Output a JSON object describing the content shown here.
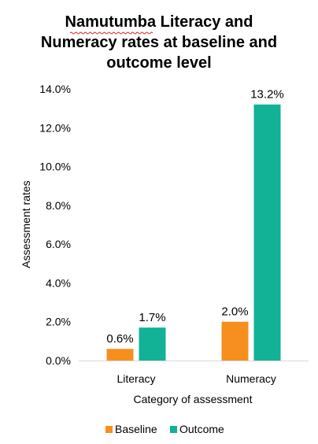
{
  "chart_data": {
    "type": "bar",
    "title_lines": [
      "Namutumba Literacy and",
      "Numeracy rates at baseline and",
      "outcome level"
    ],
    "xlabel": "Category of assessment",
    "ylabel": "Assessment rates",
    "categories": [
      "Literacy",
      "Numeracy"
    ],
    "series": [
      {
        "name": "Baseline",
        "color": "#F78F1E",
        "values": [
          0.6,
          2.0
        ],
        "labels": [
          "0.6%",
          "2.0%"
        ]
      },
      {
        "name": "Outcome",
        "color": "#12B297",
        "values": [
          1.7,
          13.2
        ],
        "labels": [
          "1.7%",
          "13.2%"
        ]
      }
    ],
    "ylim": [
      0,
      14
    ],
    "yticks": [
      0,
      2,
      4,
      6,
      8,
      10,
      12,
      14
    ],
    "ytick_labels": [
      "0.0%",
      "2.0%",
      "4.0%",
      "6.0%",
      "8.0%",
      "10.0%",
      "12.0%",
      "14.0%"
    ],
    "grid": false,
    "legend_position": "bottom"
  }
}
